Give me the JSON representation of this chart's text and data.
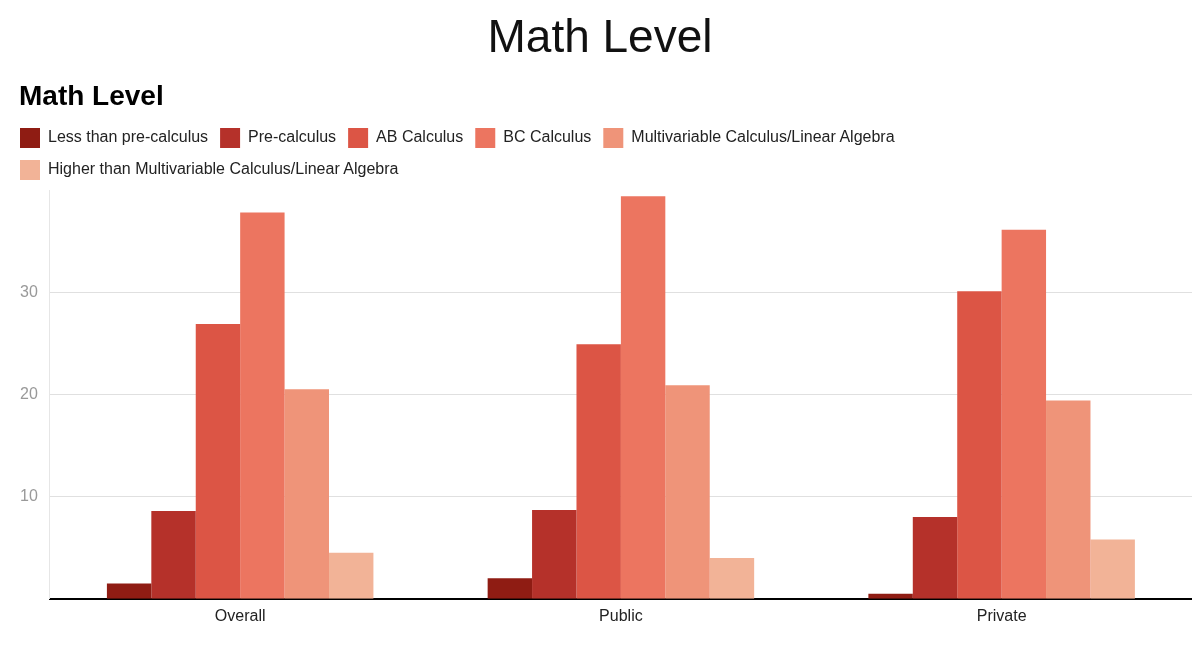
{
  "chart_data": {
    "type": "bar",
    "title": "Math Level",
    "subtitle": "Math Level",
    "categories": [
      "Overall",
      "Public",
      "Private"
    ],
    "series": [
      {
        "name": "Less than pre-calculus",
        "color": "#8f1c13",
        "values": [
          1.5,
          2.0,
          0.5
        ]
      },
      {
        "name": "Pre-calculus",
        "color": "#b5312a",
        "values": [
          8.6,
          8.7,
          8.0
        ]
      },
      {
        "name": "AB Calculus",
        "color": "#dc5545",
        "values": [
          26.9,
          24.9,
          30.1
        ]
      },
      {
        "name": "BC Calculus",
        "color": "#ec7560",
        "values": [
          37.8,
          39.4,
          36.1
        ]
      },
      {
        "name": "Multivariable Calculus/Linear Algebra",
        "color": "#ef9479",
        "values": [
          20.5,
          20.9,
          19.4
        ]
      },
      {
        "name": "Higher than Multivariable Calculus/Linear Algebra",
        "color": "#f2b397",
        "values": [
          4.5,
          4.0,
          5.8
        ]
      }
    ],
    "ylim": [
      0,
      40
    ],
    "yticks": [
      10,
      20,
      30
    ],
    "grid": "y",
    "legend": "top left"
  }
}
